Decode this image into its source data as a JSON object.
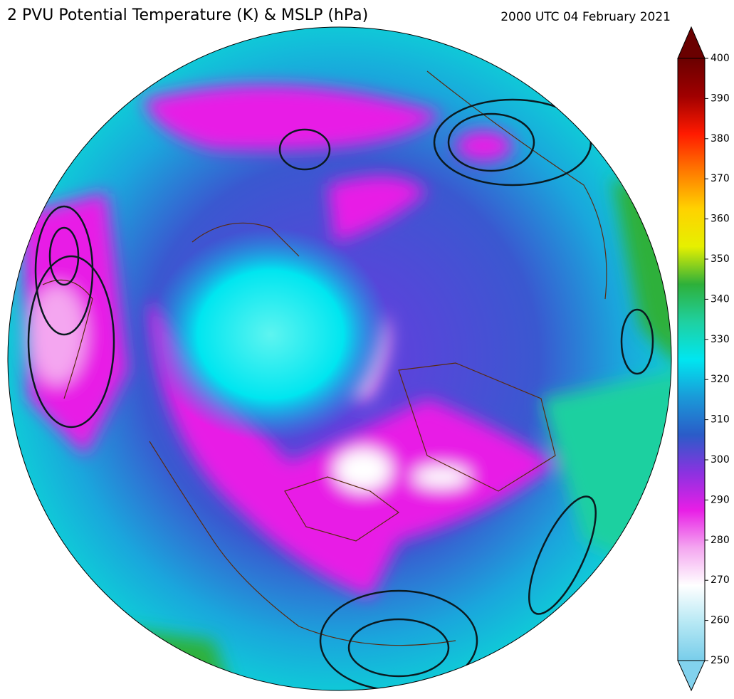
{
  "title": "2 PVU Potential Temperature (K) & MSLP (hPa)",
  "timestamp": "2000 UTC 04 February 2021",
  "colorbar": {
    "lim": [
      250,
      400
    ],
    "ticks": [
      250,
      260,
      270,
      280,
      290,
      300,
      310,
      320,
      330,
      340,
      350,
      360,
      370,
      380,
      390,
      400
    ],
    "colors": [
      "#78cdea",
      "#b6e8f4",
      "#ffffff",
      "#f4a6f0",
      "#e81ee6",
      "#8a32e0",
      "#2a5cc8",
      "#1a9ad8",
      "#00e6f0",
      "#1fd0a0",
      "#2eb03a",
      "#e6f000",
      "#ffd200",
      "#ff7a00",
      "#ff1a00",
      "#a00000",
      "#6a0000"
    ],
    "under_color": "#82d2ee",
    "over_color": "#6a0000"
  }
}
